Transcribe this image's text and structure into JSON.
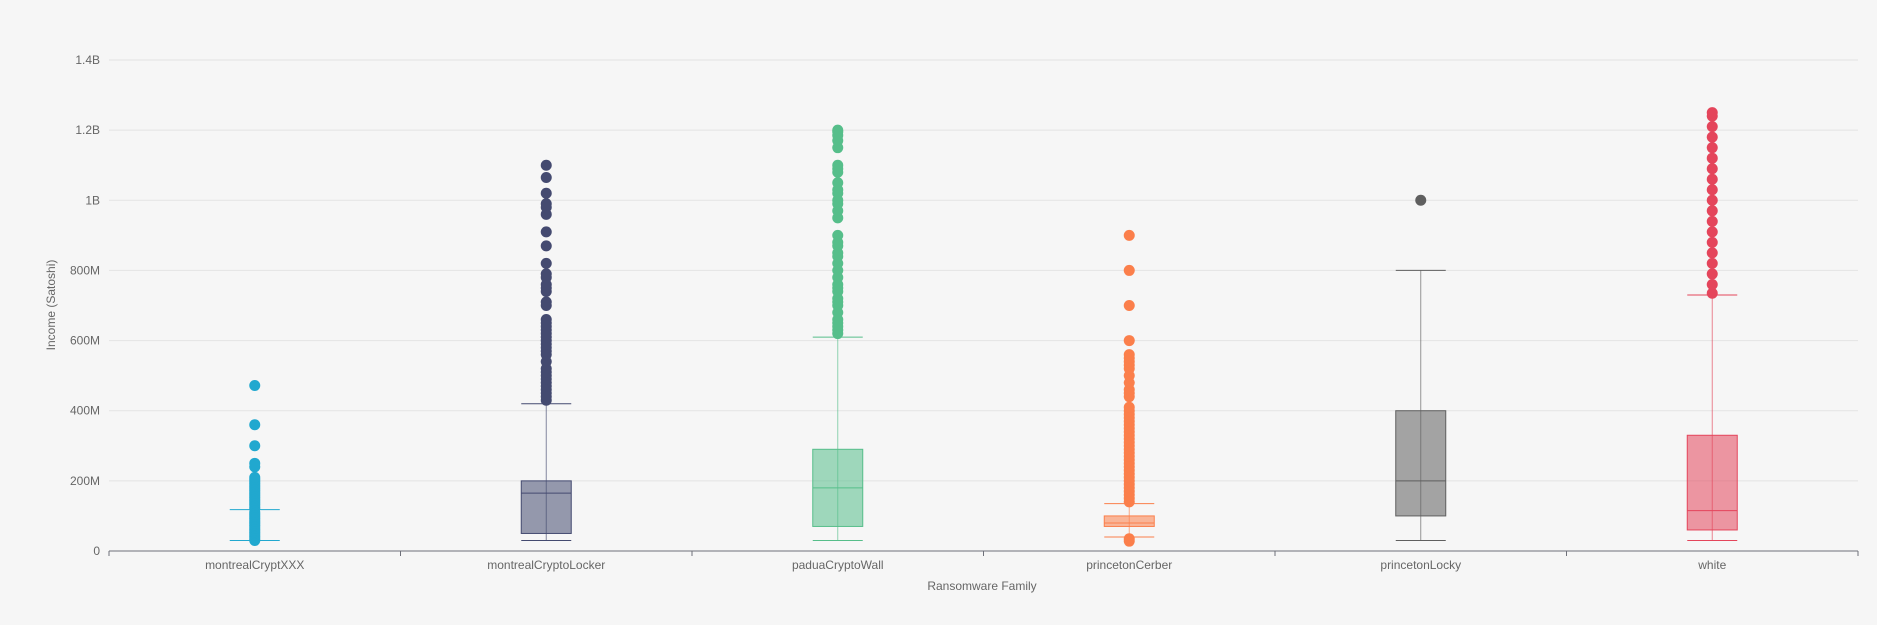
{
  "chart_data": {
    "type": "boxplot",
    "xlabel": "Ransomware Family",
    "ylabel": "Income (Satoshi)",
    "ylim": [
      0,
      1400000000
    ],
    "yticks": [
      {
        "value": 0,
        "label": "0"
      },
      {
        "value": 200000000,
        "label": "200M"
      },
      {
        "value": 400000000,
        "label": "400M"
      },
      {
        "value": 600000000,
        "label": "600M"
      },
      {
        "value": 800000000,
        "label": "800M"
      },
      {
        "value": 1000000000,
        "label": "1B"
      },
      {
        "value": 1200000000,
        "label": "1.2B"
      },
      {
        "value": 1400000000,
        "label": "1.4B"
      }
    ],
    "grid": true,
    "categories": [
      "montrealCryptXXX",
      "montrealCryptoLocker",
      "paduaCryptoWall",
      "princetonCerber",
      "princetonLocky",
      "white"
    ],
    "series": [
      {
        "color": "#21a8cf",
        "min": 30000000,
        "q1": 30000000,
        "median": 30000000,
        "q3": 30000000,
        "max": 118000000,
        "outliers": [
          30000000,
          35000000,
          40000000,
          45000000,
          50000000,
          55000000,
          60000000,
          65000000,
          70000000,
          75000000,
          80000000,
          85000000,
          90000000,
          95000000,
          100000000,
          105000000,
          110000000,
          120000000,
          125000000,
          130000000,
          135000000,
          140000000,
          145000000,
          150000000,
          155000000,
          160000000,
          165000000,
          170000000,
          175000000,
          180000000,
          185000000,
          190000000,
          195000000,
          200000000,
          205000000,
          210000000,
          240000000,
          250000000,
          300000000,
          360000000,
          472000000
        ]
      },
      {
        "color": "#444a70",
        "min": 30000000,
        "q1": 50000000,
        "median": 165000000,
        "q3": 200000000,
        "max": 420000000,
        "outliers": [
          430000000,
          440000000,
          450000000,
          460000000,
          470000000,
          480000000,
          490000000,
          500000000,
          510000000,
          520000000,
          540000000,
          560000000,
          570000000,
          580000000,
          590000000,
          600000000,
          610000000,
          620000000,
          630000000,
          640000000,
          650000000,
          660000000,
          700000000,
          710000000,
          740000000,
          750000000,
          760000000,
          780000000,
          790000000,
          820000000,
          870000000,
          910000000,
          960000000,
          980000000,
          990000000,
          1020000000,
          1065000000,
          1100000000
        ]
      },
      {
        "color": "#56be8a",
        "min": 30000000,
        "q1": 70000000,
        "median": 180000000,
        "q3": 290000000,
        "max": 610000000,
        "outliers": [
          620000000,
          630000000,
          640000000,
          650000000,
          660000000,
          680000000,
          700000000,
          710000000,
          720000000,
          740000000,
          750000000,
          760000000,
          780000000,
          800000000,
          820000000,
          840000000,
          850000000,
          870000000,
          880000000,
          900000000,
          950000000,
          970000000,
          990000000,
          1000000000,
          1020000000,
          1030000000,
          1050000000,
          1080000000,
          1090000000,
          1100000000,
          1150000000,
          1170000000,
          1185000000,
          1195000000,
          1200000000
        ]
      },
      {
        "color": "#fb7f4b",
        "min": 40000000,
        "q1": 70000000,
        "median": 80000000,
        "q3": 100000000,
        "max": 135000000,
        "outliers": [
          28000000,
          35000000,
          140000000,
          150000000,
          160000000,
          170000000,
          180000000,
          190000000,
          200000000,
          210000000,
          220000000,
          230000000,
          240000000,
          250000000,
          260000000,
          270000000,
          280000000,
          290000000,
          300000000,
          310000000,
          320000000,
          330000000,
          340000000,
          350000000,
          360000000,
          370000000,
          380000000,
          390000000,
          400000000,
          410000000,
          440000000,
          450000000,
          460000000,
          480000000,
          500000000,
          520000000,
          530000000,
          540000000,
          550000000,
          560000000,
          600000000,
          700000000,
          800000000,
          900000000
        ]
      },
      {
        "color": "#5f5f5f",
        "min": 30000000,
        "q1": 100000000,
        "median": 200000000,
        "q3": 400000000,
        "max": 800000000,
        "outliers": [
          1000000000
        ]
      },
      {
        "color": "#e4455b",
        "min": 30000000,
        "q1": 60000000,
        "median": 115000000,
        "q3": 330000000,
        "max": 730000000,
        "outliers": [
          735000000,
          760000000,
          790000000,
          820000000,
          850000000,
          880000000,
          910000000,
          940000000,
          970000000,
          1000000000,
          1030000000,
          1060000000,
          1090000000,
          1120000000,
          1150000000,
          1180000000,
          1210000000,
          1240000000,
          1250000000
        ]
      }
    ]
  }
}
